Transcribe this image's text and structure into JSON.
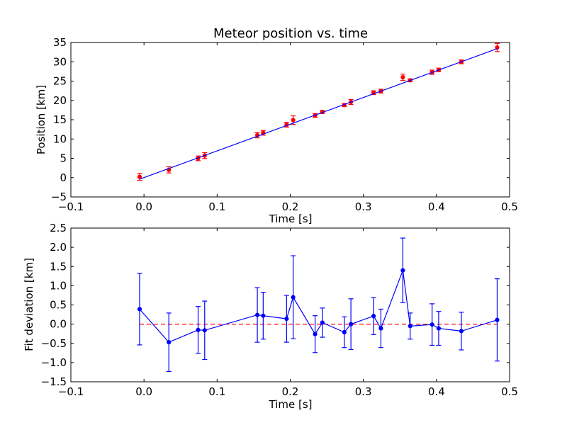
{
  "chart_data": [
    {
      "type": "scatter",
      "title": "Meteor position vs. time",
      "xlabel": "Time [s]",
      "ylabel": "Position [km]",
      "xlim": [
        -0.1,
        0.5
      ],
      "ylim": [
        -5,
        35
      ],
      "xticks": [
        -0.1,
        0.0,
        0.1,
        0.2,
        0.3,
        0.4,
        0.5
      ],
      "xtick_labels": [
        "−0.1",
        "0.0",
        "0.1",
        "0.2",
        "0.3",
        "0.4",
        "0.5"
      ],
      "yticks": [
        -5,
        0,
        5,
        10,
        15,
        20,
        25,
        30,
        35
      ],
      "ytick_labels": [
        "−5",
        "0",
        "5",
        "10",
        "15",
        "20",
        "25",
        "30",
        "35"
      ],
      "grid": false,
      "series": [
        {
          "style": "points-with-errorbars",
          "color": "#ff0000",
          "x": [
            -0.006,
            0.034,
            0.074,
            0.083,
            0.155,
            0.163,
            0.195,
            0.204,
            0.234,
            0.244,
            0.274,
            0.283,
            0.314,
            0.324,
            0.354,
            0.364,
            0.394,
            0.403,
            0.434,
            0.483
          ],
          "y": [
            0.2,
            2.0,
            5.0,
            5.7,
            11.0,
            11.6,
            13.7,
            14.9,
            16.1,
            17.0,
            18.8,
            19.6,
            22.0,
            22.4,
            26.0,
            25.2,
            27.3,
            27.9,
            30.0,
            33.7
          ],
          "yerr": [
            0.9,
            0.8,
            0.6,
            0.75,
            0.7,
            0.6,
            0.6,
            1.1,
            0.5,
            0.4,
            0.4,
            0.65,
            0.5,
            0.5,
            0.8,
            0.35,
            0.55,
            0.45,
            0.5,
            1.05
          ]
        },
        {
          "style": "line",
          "color": "#0000ff",
          "x": [
            -0.006,
            0.483
          ],
          "y": [
            -0.4,
            33.4
          ]
        }
      ]
    },
    {
      "type": "scatter",
      "title": "",
      "xlabel": "Time [s]",
      "ylabel": "Fit deviation [km]",
      "xlim": [
        -0.1,
        0.5
      ],
      "ylim": [
        -1.5,
        2.5
      ],
      "xticks": [
        -0.1,
        0.0,
        0.1,
        0.2,
        0.3,
        0.4,
        0.5
      ],
      "xtick_labels": [
        "−0.1",
        "0.0",
        "0.1",
        "0.2",
        "0.3",
        "0.4",
        "0.5"
      ],
      "yticks": [
        -1.5,
        -1.0,
        -0.5,
        0.0,
        0.5,
        1.0,
        1.5,
        2.0,
        2.5
      ],
      "ytick_labels": [
        "−1.5",
        "−1.0",
        "−0.5",
        "0.0",
        "0.5",
        "1.0",
        "1.5",
        "2.0",
        "2.5"
      ],
      "grid": false,
      "reference_line": {
        "y": 0,
        "color": "#ff0000",
        "dash": true
      },
      "series": [
        {
          "style": "line-points-with-errorbars",
          "color": "#0000ff",
          "x": [
            -0.006,
            0.034,
            0.074,
            0.083,
            0.155,
            0.163,
            0.195,
            0.204,
            0.234,
            0.244,
            0.274,
            0.283,
            0.314,
            0.324,
            0.354,
            0.364,
            0.394,
            0.403,
            0.434,
            0.483
          ],
          "y": [
            0.39,
            -0.47,
            -0.15,
            -0.16,
            0.24,
            0.22,
            0.14,
            0.7,
            -0.26,
            0.04,
            -0.21,
            0.0,
            0.21,
            -0.11,
            1.4,
            -0.05,
            -0.01,
            -0.11,
            -0.18,
            0.11
          ],
          "yerr": [
            0.93,
            0.76,
            0.61,
            0.76,
            0.71,
            0.61,
            0.61,
            1.08,
            0.48,
            0.38,
            0.4,
            0.66,
            0.48,
            0.5,
            0.84,
            0.34,
            0.54,
            0.44,
            0.49,
            1.07
          ]
        }
      ]
    }
  ]
}
